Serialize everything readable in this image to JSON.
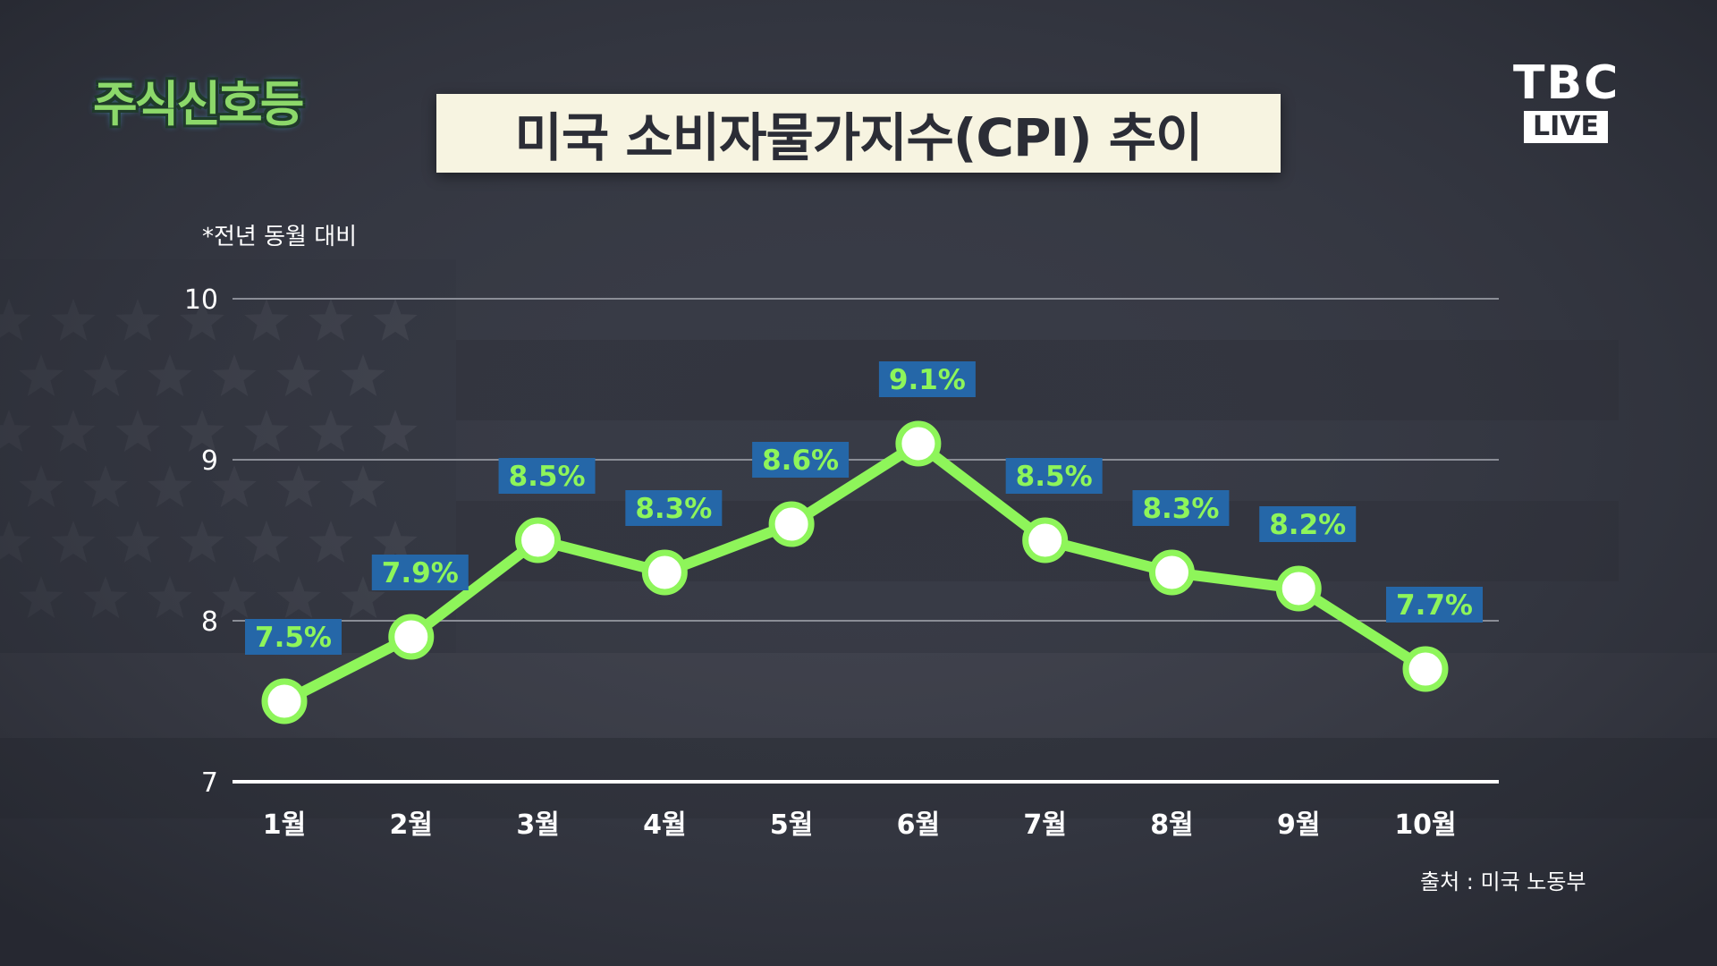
{
  "header": {
    "program_logo_text": "주식신호등",
    "title": "미국 소비자물가지수(CPI) 추이",
    "broadcaster": "TBC",
    "live_badge": "LIVE"
  },
  "note": "*전년 동월 대비",
  "source": "출처 : 미국 노동부",
  "colors": {
    "background": "#373a45",
    "line": "#8ef55a",
    "label_box": "#2567a8",
    "label_text": "#8ef55a",
    "title_box": "#f7f4e1"
  },
  "chart_data": {
    "type": "line",
    "title": "미국 소비자물가지수(CPI) 추이",
    "categories": [
      "1월",
      "2월",
      "3월",
      "4월",
      "5월",
      "6월",
      "7월",
      "8월",
      "9월",
      "10월"
    ],
    "series": [
      {
        "values": [
          7.5,
          7.9,
          8.5,
          8.3,
          8.6,
          9.1,
          8.5,
          8.3,
          8.2,
          7.7
        ],
        "labels": [
          "7.5%",
          "7.9%",
          "8.5%",
          "8.3%",
          "8.6%",
          "9.1%",
          "8.5%",
          "8.3%",
          "8.2%",
          "7.7%"
        ]
      }
    ],
    "yticks": [
      7,
      8,
      9,
      10
    ],
    "ylim": [
      7,
      10
    ],
    "grid": true
  }
}
